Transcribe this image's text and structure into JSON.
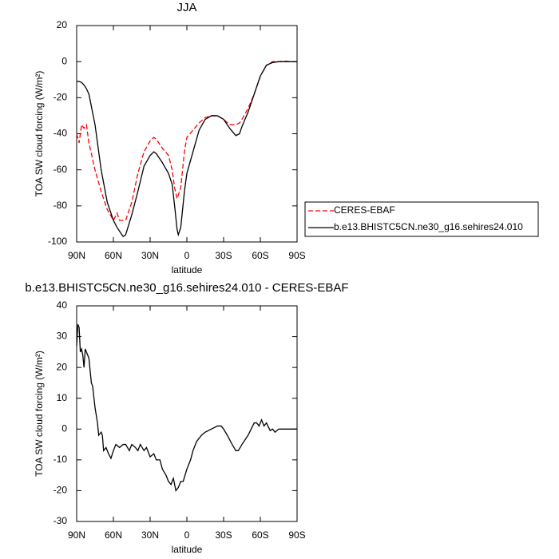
{
  "chart_data": [
    {
      "type": "line",
      "title": "JJA",
      "xlabel": "latitude",
      "ylabel": "TOA SW cloud forcing (W/m²)",
      "x": [
        90,
        88,
        86,
        84,
        82,
        80,
        75,
        70,
        65,
        60,
        57,
        55,
        52,
        50,
        45,
        40,
        35,
        30,
        27,
        25,
        20,
        15,
        12,
        10,
        8,
        7,
        5,
        2,
        0,
        -5,
        -10,
        -15,
        -20,
        -25,
        -30,
        -35,
        -40,
        -43,
        -45,
        -50,
        -55,
        -60,
        -65,
        -70,
        -75,
        -80,
        -85,
        -90
      ],
      "series": [
        {
          "name": "CERES-EBAF",
          "color": "#ff0000",
          "line_style": "dashed",
          "values": [
            -40,
            -45,
            -35,
            -37,
            -35,
            -45,
            -60,
            -72,
            -82,
            -88,
            -84,
            -88,
            -88,
            -88,
            -78,
            -62,
            -50,
            -44,
            -42,
            -43,
            -48,
            -52,
            -60,
            -70,
            -76,
            -74,
            -70,
            -50,
            -42,
            -38,
            -34,
            -31,
            -30,
            -30,
            -32,
            -35,
            -35,
            -34,
            -32,
            -26,
            -18,
            -8,
            -2,
            0,
            0,
            0.3,
            0,
            0
          ]
        },
        {
          "name": "b.e13.BHISTC5CN.ne30_g16.sehires24.010",
          "color": "#000000",
          "line_style": "solid",
          "values": [
            -11,
            -11,
            -11.5,
            -13,
            -15,
            -18,
            -35,
            -60,
            -78,
            -88,
            -92,
            -94,
            -97,
            -96,
            -85,
            -72,
            -58,
            -52,
            -50,
            -51,
            -56,
            -62,
            -68,
            -80,
            -93,
            -96,
            -92,
            -72,
            -62,
            -50,
            -38,
            -32,
            -30,
            -30,
            -32,
            -37,
            -41,
            -40,
            -36,
            -28,
            -18,
            -8,
            -2,
            -0.5,
            0,
            0,
            0,
            0
          ]
        }
      ],
      "xlim": [
        90,
        -90
      ],
      "xticks": [
        {
          "value": 90,
          "label": "90N"
        },
        {
          "value": 60,
          "label": "60N"
        },
        {
          "value": 30,
          "label": "30N"
        },
        0,
        {
          "value": -30,
          "label": "30S"
        },
        {
          "value": -60,
          "label": "60S"
        },
        {
          "value": -90,
          "label": "90S"
        }
      ],
      "ylim": [
        -100,
        20
      ],
      "yticks": [
        -100,
        -80,
        -60,
        -40,
        -20,
        0,
        20
      ]
    },
    {
      "type": "line",
      "title": "b.e13.BHISTC5CN.ne30_g16.sehires24.010 - CERES-EBAF",
      "xlabel": "latitude",
      "ylabel": "TOA SW cloud forcing (W/m²)",
      "x": [
        90,
        89,
        88,
        87,
        86,
        85,
        84,
        83,
        82,
        80,
        78,
        77,
        75,
        73,
        72,
        70,
        69,
        68,
        66,
        64,
        62,
        60,
        58,
        55,
        52,
        50,
        47,
        45,
        42,
        40,
        38,
        35,
        33,
        30,
        27,
        25,
        22,
        20,
        17,
        15,
        13,
        11,
        9,
        7,
        5,
        3,
        0,
        -3,
        -5,
        -8,
        -12,
        -15,
        -20,
        -25,
        -28,
        -30,
        -33,
        -37,
        -40,
        -42,
        -45,
        -50,
        -55,
        -57,
        -59,
        -61,
        -63,
        -65,
        -68,
        -70,
        -72,
        -75,
        -80,
        -85,
        -90
      ],
      "series": [
        {
          "color": "#000000",
          "line_style": "solid",
          "values": [
            27,
            34,
            33,
            25,
            26,
            24,
            20,
            26,
            25,
            23,
            15,
            14,
            7,
            2,
            -2,
            -1,
            -2,
            -7,
            -6,
            -8,
            -9.5,
            -7,
            -5,
            -6,
            -5,
            -5,
            -7,
            -5,
            -6,
            -7,
            -5,
            -7,
            -6,
            -9,
            -8,
            -10,
            -10,
            -13,
            -15,
            -17,
            -18,
            -16,
            -20,
            -19,
            -17,
            -17,
            -13,
            -10,
            -7,
            -4,
            -2,
            -1,
            0,
            1,
            1,
            0,
            -2,
            -5,
            -7,
            -7,
            -5,
            -2,
            2,
            2,
            1,
            3,
            1,
            2,
            -0.5,
            0,
            -1,
            0,
            0,
            0,
            0
          ]
        }
      ],
      "xlim": [
        90,
        -90
      ],
      "xticks": [
        {
          "value": 90,
          "label": "90N"
        },
        {
          "value": 60,
          "label": "60N"
        },
        {
          "value": 30,
          "label": "30N"
        },
        0,
        {
          "value": -30,
          "label": "30S"
        },
        {
          "value": -60,
          "label": "60S"
        },
        {
          "value": -90,
          "label": "90S"
        }
      ],
      "ylim": [
        -30,
        40
      ],
      "yticks": [
        -30,
        -20,
        -10,
        0,
        10,
        20,
        30,
        40
      ]
    }
  ]
}
